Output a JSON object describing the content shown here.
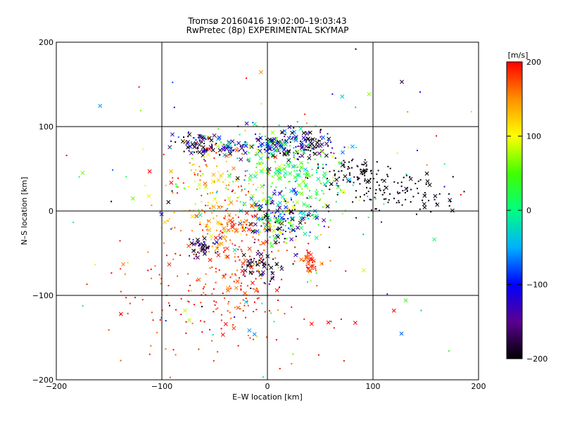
{
  "chart_data": {
    "type": "scatter",
    "title": "Tromsø 20160416 19:02:00–19:03:43",
    "subtitle": "RwPretec (8p) EXPERIMENTAL SKYMAP",
    "xlabel": "E–W location [km]",
    "ylabel": "N–S location [km]",
    "xlim": [
      -200,
      200
    ],
    "ylim": [
      -200,
      200
    ],
    "xticks": [
      -200,
      -100,
      0,
      100,
      200
    ],
    "yticks": [
      -200,
      -100,
      0,
      100,
      200
    ],
    "xtick_labels": [
      "−200",
      "−100",
      "0",
      "100",
      "200"
    ],
    "ytick_labels": [
      "−200",
      "−100",
      "0",
      "100",
      "200"
    ],
    "grid": true,
    "colorbar": {
      "label": "[m/s]",
      "range": [
        -200,
        200
      ],
      "ticks": [
        200,
        100,
        0,
        -100,
        -200
      ],
      "tick_labels": [
        "200",
        "100",
        "0",
        "−100",
        "−200"
      ],
      "colormap": [
        "#000000",
        "#5a0090",
        "#0000ff",
        "#00b0ff",
        "#00ff80",
        "#40ff00",
        "#ffff00",
        "#ff9000",
        "#ff0000"
      ]
    },
    "markers": [
      "dot",
      "x"
    ],
    "clusters": [
      {
        "x": -65,
        "y": 78,
        "sx": 10,
        "sy": 6,
        "n": 70,
        "v": -180,
        "vs": 60,
        "xfrac": 0.45
      },
      {
        "x": -35,
        "y": 72,
        "sx": 8,
        "sy": 6,
        "n": 40,
        "v": -120,
        "vs": 60,
        "xfrac": 0.4
      },
      {
        "x": 10,
        "y": 78,
        "sx": 18,
        "sy": 9,
        "n": 130,
        "v": -110,
        "vs": 90,
        "xfrac": 0.4
      },
      {
        "x": 40,
        "y": 78,
        "sx": 12,
        "sy": 8,
        "n": 70,
        "v": -170,
        "vs": 60,
        "xfrac": 0.45
      },
      {
        "x": 75,
        "y": 45,
        "sx": 14,
        "sy": 10,
        "n": 60,
        "v": -200,
        "vs": 20,
        "xfrac": 0.2
      },
      {
        "x": 110,
        "y": 28,
        "sx": 22,
        "sy": 12,
        "n": 90,
        "v": -200,
        "vs": 10,
        "xfrac": 0.15
      },
      {
        "x": 150,
        "y": 10,
        "sx": 15,
        "sy": 8,
        "n": 25,
        "v": -200,
        "vs": 10,
        "xfrac": 0.2
      },
      {
        "x": 25,
        "y": 40,
        "sx": 25,
        "sy": 22,
        "n": 180,
        "v": 20,
        "vs": 40,
        "xfrac": 0.3
      },
      {
        "x": -45,
        "y": 30,
        "sx": 30,
        "sy": 28,
        "n": 180,
        "v": 130,
        "vs": 50,
        "xfrac": 0.25
      },
      {
        "x": -30,
        "y": -25,
        "sx": 25,
        "sy": 18,
        "n": 120,
        "v": 160,
        "vs": 40,
        "xfrac": 0.25
      },
      {
        "x": 15,
        "y": -10,
        "sx": 18,
        "sy": 14,
        "n": 180,
        "v": -70,
        "vs": 90,
        "xfrac": 0.4
      },
      {
        "x": -60,
        "y": -42,
        "sx": 8,
        "sy": 6,
        "n": 45,
        "v": -170,
        "vs": 50,
        "xfrac": 0.45
      },
      {
        "x": -5,
        "y": -68,
        "sx": 8,
        "sy": 10,
        "n": 55,
        "v": -190,
        "vs": 30,
        "xfrac": 0.45
      },
      {
        "x": 40,
        "y": -63,
        "sx": 6,
        "sy": 5,
        "n": 40,
        "v": 180,
        "vs": 20,
        "xfrac": 0.4
      },
      {
        "x": -55,
        "y": -100,
        "sx": 40,
        "sy": 45,
        "n": 180,
        "v": 190,
        "vs": 20,
        "xfrac": 0.05
      },
      {
        "x": -30,
        "y": -80,
        "sx": 15,
        "sy": 15,
        "n": 40,
        "v": 170,
        "vs": 30,
        "xfrac": 0.3
      },
      {
        "x": 0,
        "y": 0,
        "sx": 110,
        "sy": 110,
        "n": 160,
        "v": 0,
        "vs": 150,
        "xfrac": 0.2
      }
    ]
  }
}
